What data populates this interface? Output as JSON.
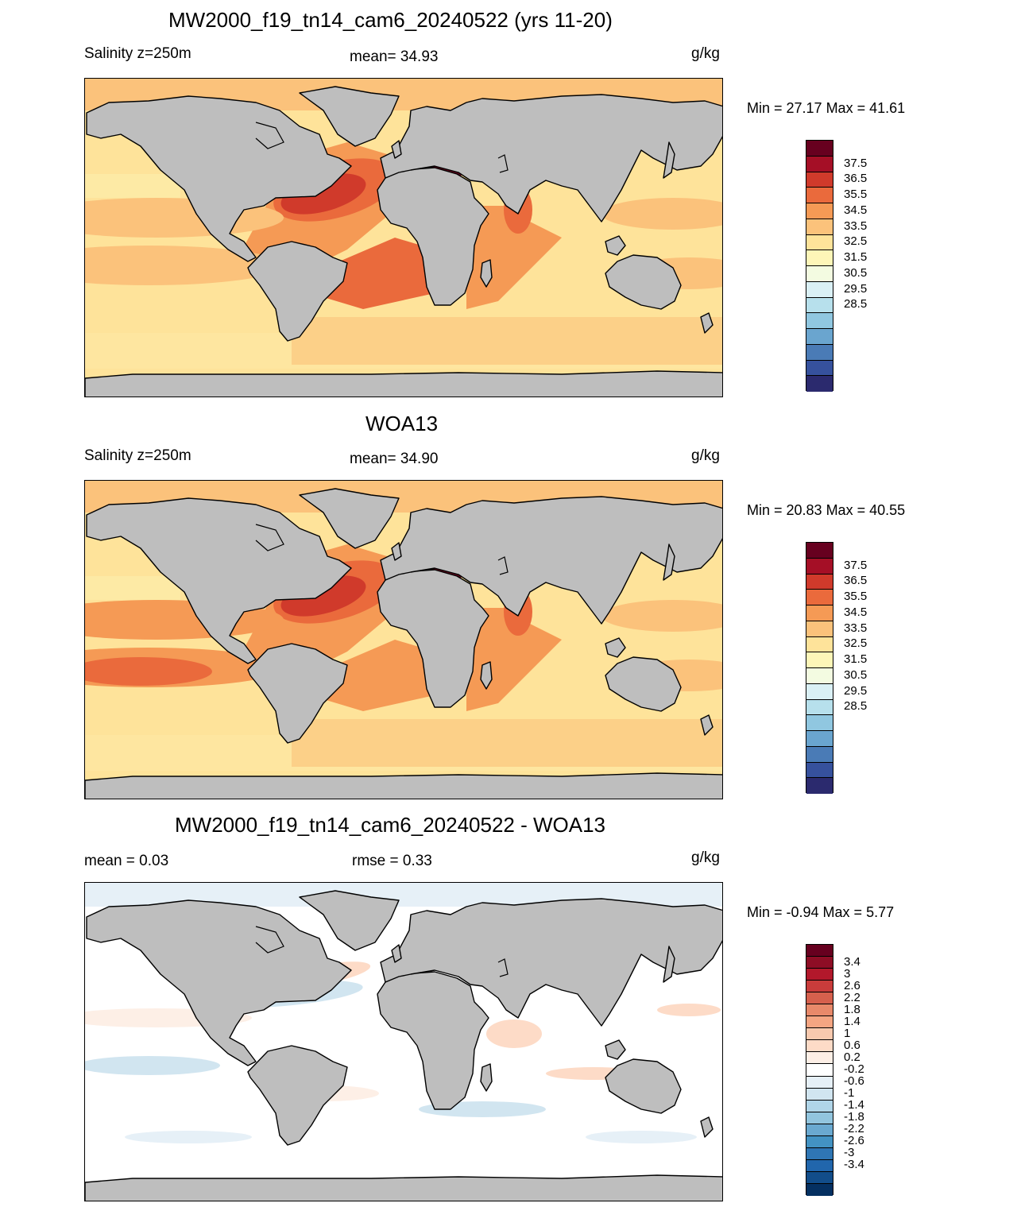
{
  "panels": [
    {
      "id": "model",
      "title": "MW2000_f19_tn14_cam6_20240522 (yrs 11-20)",
      "left_text": "Salinity z=250m",
      "center_text": "mean=  34.93",
      "units": "g/kg",
      "minmax": "Min =  27.17 Max =  41.61",
      "colorbar": {
        "labels": [
          "37.5",
          "36.5",
          "35.5",
          "34.5",
          "33.5",
          "32.5",
          "31.5",
          "30.5",
          "29.5",
          "28.5"
        ],
        "colors": [
          "#67001f",
          "#a50f26",
          "#d03a2b",
          "#ea6a3c",
          "#f59a55",
          "#fbc27b",
          "#fee39a",
          "#fdf6b8",
          "#f3fbe1",
          "#daf0f5",
          "#b7e0ec",
          "#90c7e0",
          "#6aa5cf",
          "#4a7bb6",
          "#36519d",
          "#2b2a6e"
        ]
      }
    },
    {
      "id": "obs",
      "title": "WOA13",
      "left_text": "Salinity z=250m",
      "center_text": "mean=  34.90",
      "units": "g/kg",
      "minmax": "Min =  20.83 Max =  40.55",
      "colorbar": {
        "labels": [
          "37.5",
          "36.5",
          "35.5",
          "34.5",
          "33.5",
          "32.5",
          "31.5",
          "30.5",
          "29.5",
          "28.5"
        ],
        "colors": [
          "#67001f",
          "#a50f26",
          "#d03a2b",
          "#ea6a3c",
          "#f59a55",
          "#fbc27b",
          "#fee39a",
          "#fdf6b8",
          "#f3fbe1",
          "#daf0f5",
          "#b7e0ec",
          "#90c7e0",
          "#6aa5cf",
          "#4a7bb6",
          "#36519d",
          "#2b2a6e"
        ]
      }
    },
    {
      "id": "diff",
      "title": "MW2000_f19_tn14_cam6_20240522 - WOA13",
      "left_text": "mean =   0.03",
      "center_text": "rmse =   0.33",
      "units": "g/kg",
      "minmax": "Min =  -0.94 Max =   5.77",
      "colorbar": {
        "labels": [
          "3.4",
          "3",
          "2.6",
          "2.2",
          "1.8",
          "1.4",
          "1",
          "0.6",
          "0.2",
          "-0.2",
          "-0.6",
          "-1",
          "-1.4",
          "-1.8",
          "-2.2",
          "-2.6",
          "-3",
          "-3.4"
        ],
        "colors": [
          "#67001f",
          "#8e0d25",
          "#b2182b",
          "#c93c3b",
          "#d6604d",
          "#e8896a",
          "#f4a582",
          "#f8c9ae",
          "#fddbc7",
          "#fdefe6",
          "#ffffff",
          "#e6f0f7",
          "#d1e5f0",
          "#b0d5e8",
          "#92c5de",
          "#6aa9d0",
          "#4393c3",
          "#2f76b4",
          "#2166ac",
          "#124d8a",
          "#053061"
        ]
      }
    }
  ]
}
